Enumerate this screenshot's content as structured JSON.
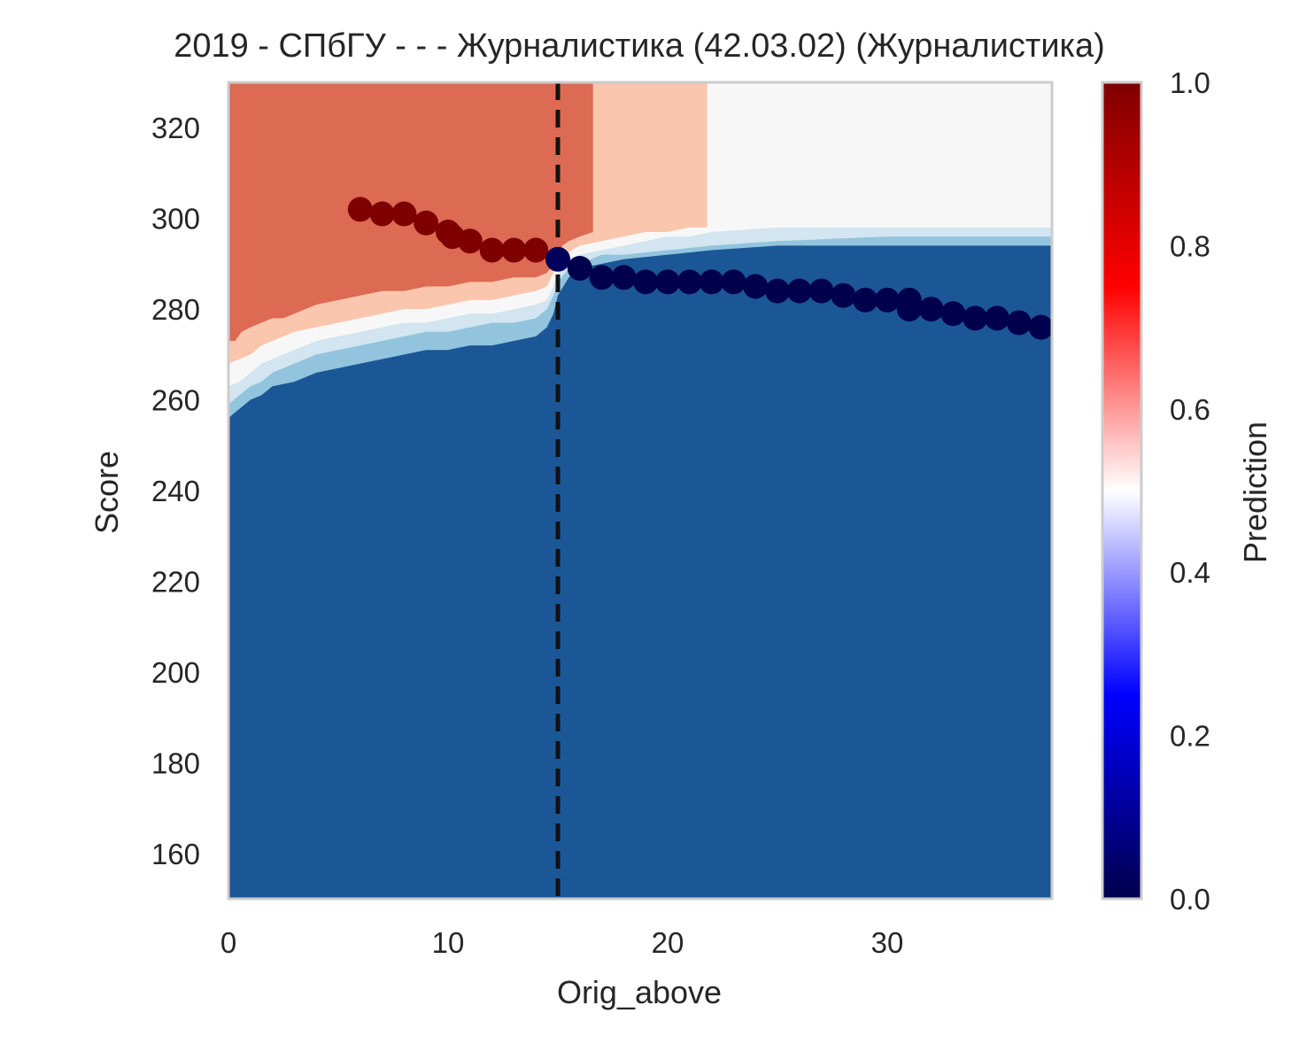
{
  "chart_data": {
    "type": "heatmap",
    "title": "2019 - СПбГУ - - - Журналистика (42.03.02) (Журналистика)",
    "xlabel": "Orig_above",
    "ylabel": "Score",
    "xlim": [
      0,
      37.5
    ],
    "ylim": [
      150,
      330
    ],
    "x_ticks": [
      0,
      10,
      20,
      30
    ],
    "y_ticks": [
      160,
      180,
      200,
      220,
      240,
      260,
      280,
      300,
      320
    ],
    "grid": false,
    "vline": {
      "x": 15,
      "style": "dashed",
      "color": "#111111"
    },
    "contour_levels": [
      0.0,
      0.1,
      0.2,
      0.3,
      0.4,
      0.5,
      0.6,
      0.7,
      0.8,
      0.9,
      1.0
    ],
    "contour_fill_colors": [
      "#1b5796",
      "#1b5796",
      "#4393c3",
      "#93c4de",
      "#d2e5f0",
      "#f7f7f7",
      "#fac6ad",
      "#dd6a53",
      "#dd6a53",
      "#9b1128"
    ],
    "contour_boundaries": [
      {
        "level": 0.85,
        "points": [
          [
            0,
            273
          ],
          [
            0.3,
            273
          ],
          [
            0.6,
            275
          ],
          [
            1,
            276
          ],
          [
            1.5,
            277
          ],
          [
            2,
            278
          ],
          [
            2.5,
            278
          ],
          [
            3,
            279
          ],
          [
            3.5,
            280
          ],
          [
            4,
            281
          ],
          [
            5,
            282
          ],
          [
            6,
            283
          ],
          [
            7,
            284
          ],
          [
            8,
            284
          ],
          [
            9,
            285
          ],
          [
            10,
            285
          ],
          [
            11,
            286
          ],
          [
            12,
            286
          ],
          [
            13,
            287
          ],
          [
            14,
            287
          ],
          [
            14.5,
            288
          ],
          [
            15,
            291
          ],
          [
            15.2,
            294
          ],
          [
            15.5,
            295
          ],
          [
            16,
            296
          ],
          [
            16.6,
            297
          ],
          [
            16.6,
            330
          ]
        ]
      },
      {
        "level": 0.65,
        "points": [
          [
            0,
            268
          ],
          [
            0.5,
            269
          ],
          [
            1,
            270
          ],
          [
            1.5,
            272
          ],
          [
            2,
            273
          ],
          [
            2.5,
            274
          ],
          [
            3,
            275
          ],
          [
            4,
            276
          ],
          [
            5,
            277
          ],
          [
            6,
            278
          ],
          [
            7,
            279
          ],
          [
            8,
            280
          ],
          [
            9,
            280
          ],
          [
            10,
            281
          ],
          [
            11,
            282
          ],
          [
            12,
            282
          ],
          [
            13,
            283
          ],
          [
            14,
            284
          ],
          [
            14.5,
            285
          ],
          [
            14.8,
            288
          ],
          [
            15,
            290
          ],
          [
            15.3,
            292
          ],
          [
            16,
            294
          ],
          [
            17,
            295
          ],
          [
            18,
            296
          ],
          [
            19,
            297
          ],
          [
            20,
            297
          ],
          [
            21,
            298
          ],
          [
            21.8,
            298
          ],
          [
            21.8,
            330
          ]
        ]
      },
      {
        "level": 0.55,
        "points": [
          [
            0,
            263
          ],
          [
            0.5,
            264
          ],
          [
            1,
            266
          ],
          [
            1.5,
            268
          ],
          [
            2,
            269
          ],
          [
            3,
            271
          ],
          [
            4,
            273
          ],
          [
            5,
            274
          ],
          [
            6,
            275
          ],
          [
            7,
            276
          ],
          [
            8,
            277
          ],
          [
            9,
            277
          ],
          [
            10,
            278
          ],
          [
            11,
            279
          ],
          [
            12,
            279
          ],
          [
            13,
            280
          ],
          [
            14,
            281
          ],
          [
            14.5,
            282
          ],
          [
            14.8,
            285
          ],
          [
            15,
            288
          ],
          [
            15.5,
            291
          ],
          [
            16,
            292
          ],
          [
            17,
            293
          ],
          [
            18,
            294
          ],
          [
            19,
            295
          ],
          [
            20,
            296
          ],
          [
            21,
            296
          ],
          [
            22,
            297
          ],
          [
            25,
            298
          ],
          [
            30,
            298
          ],
          [
            37.5,
            298
          ]
        ]
      },
      {
        "level": 0.45,
        "points": [
          [
            0,
            259
          ],
          [
            0.5,
            261
          ],
          [
            1,
            263
          ],
          [
            1.5,
            264
          ],
          [
            2,
            266
          ],
          [
            3,
            268
          ],
          [
            4,
            270
          ],
          [
            5,
            271
          ],
          [
            6,
            272
          ],
          [
            7,
            273
          ],
          [
            8,
            274
          ],
          [
            9,
            275
          ],
          [
            10,
            275
          ],
          [
            11,
            276
          ],
          [
            12,
            277
          ],
          [
            13,
            277
          ],
          [
            14,
            278
          ],
          [
            14.5,
            280
          ],
          [
            14.8,
            283
          ],
          [
            15,
            286
          ],
          [
            15.5,
            289
          ],
          [
            16,
            290
          ],
          [
            17,
            292
          ],
          [
            18,
            292
          ],
          [
            20,
            293
          ],
          [
            22,
            294
          ],
          [
            25,
            295
          ],
          [
            30,
            296
          ],
          [
            37.5,
            296
          ]
        ]
      },
      {
        "level": 0.35,
        "points": [
          [
            0,
            256
          ],
          [
            0.5,
            258
          ],
          [
            1,
            260
          ],
          [
            1.5,
            261
          ],
          [
            2,
            263
          ],
          [
            3,
            264
          ],
          [
            4,
            266
          ],
          [
            5,
            267
          ],
          [
            6,
            268
          ],
          [
            7,
            269
          ],
          [
            8,
            270
          ],
          [
            9,
            271
          ],
          [
            10,
            271
          ],
          [
            11,
            272
          ],
          [
            12,
            272
          ],
          [
            13,
            273
          ],
          [
            14,
            274
          ],
          [
            14.5,
            276
          ],
          [
            14.8,
            279
          ],
          [
            15,
            283
          ],
          [
            15.5,
            287
          ],
          [
            16,
            289
          ],
          [
            17,
            290
          ],
          [
            18,
            291
          ],
          [
            20,
            292
          ],
          [
            22,
            293
          ],
          [
            25,
            294
          ],
          [
            30,
            294
          ],
          [
            37.5,
            294
          ]
        ]
      },
      {
        "level": 0.15,
        "points": [
          [
            0,
            247
          ],
          [
            0.3,
            250
          ],
          [
            0.7,
            252
          ],
          [
            1,
            254
          ],
          [
            1.5,
            256
          ],
          [
            2,
            258
          ],
          [
            2.5,
            259
          ],
          [
            3,
            260
          ],
          [
            4,
            262
          ],
          [
            5,
            264
          ],
          [
            6,
            265
          ],
          [
            7,
            266
          ],
          [
            8,
            267
          ],
          [
            9,
            267
          ],
          [
            10,
            268
          ],
          [
            11,
            268
          ],
          [
            12,
            269
          ],
          [
            13,
            269
          ],
          [
            14,
            270
          ],
          [
            14.5,
            272
          ],
          [
            14.8,
            276
          ],
          [
            15,
            280
          ],
          [
            15.5,
            284
          ],
          [
            16,
            287
          ],
          [
            17,
            288
          ],
          [
            18,
            289
          ],
          [
            20,
            290
          ],
          [
            22,
            291
          ],
          [
            25,
            291
          ],
          [
            30,
            291
          ],
          [
            37.5,
            291
          ]
        ]
      }
    ],
    "scatter_points": [
      {
        "x": 6,
        "y": 302,
        "value": 1.0
      },
      {
        "x": 7,
        "y": 301,
        "value": 1.0
      },
      {
        "x": 8,
        "y": 301,
        "value": 1.0
      },
      {
        "x": 9,
        "y": 299,
        "value": 1.0
      },
      {
        "x": 10,
        "y": 297,
        "value": 1.0
      },
      {
        "x": 10.2,
        "y": 296,
        "value": 1.0
      },
      {
        "x": 11,
        "y": 295,
        "value": 1.0
      },
      {
        "x": 12,
        "y": 293,
        "value": 1.0
      },
      {
        "x": 13,
        "y": 293,
        "value": 1.0
      },
      {
        "x": 14,
        "y": 293,
        "value": 1.0
      },
      {
        "x": 15,
        "y": 291,
        "value": 0.02
      },
      {
        "x": 16,
        "y": 289,
        "value": 0.0
      },
      {
        "x": 17,
        "y": 287,
        "value": 0.0
      },
      {
        "x": 18,
        "y": 287,
        "value": 0.0
      },
      {
        "x": 19,
        "y": 286,
        "value": 0.0
      },
      {
        "x": 20,
        "y": 286,
        "value": 0.0
      },
      {
        "x": 21,
        "y": 286,
        "value": 0.0
      },
      {
        "x": 22,
        "y": 286,
        "value": 0.0
      },
      {
        "x": 23,
        "y": 286,
        "value": 0.0
      },
      {
        "x": 24,
        "y": 285,
        "value": 0.0
      },
      {
        "x": 25,
        "y": 284,
        "value": 0.0
      },
      {
        "x": 26,
        "y": 284,
        "value": 0.0
      },
      {
        "x": 27,
        "y": 284,
        "value": 0.0
      },
      {
        "x": 28,
        "y": 283,
        "value": 0.0
      },
      {
        "x": 29,
        "y": 282,
        "value": 0.0
      },
      {
        "x": 30,
        "y": 282,
        "value": 0.0
      },
      {
        "x": 31,
        "y": 282,
        "value": 0.0
      },
      {
        "x": 31,
        "y": 280,
        "value": 0.0
      },
      {
        "x": 32,
        "y": 280,
        "value": 0.0
      },
      {
        "x": 33,
        "y": 279,
        "value": 0.0
      },
      {
        "x": 34,
        "y": 278,
        "value": 0.0
      },
      {
        "x": 35,
        "y": 278,
        "value": 0.0
      },
      {
        "x": 36,
        "y": 277,
        "value": 0.0
      },
      {
        "x": 37,
        "y": 276,
        "value": 0.0
      }
    ],
    "colorbar": {
      "label": "Prediction",
      "range": [
        0.0,
        1.0
      ],
      "ticks": [
        "0.0",
        "0.2",
        "0.4",
        "0.6",
        "0.8",
        "1.0"
      ],
      "colormap": "seismic",
      "colormap_stops": [
        {
          "value": 0.0,
          "color": "#00004c"
        },
        {
          "value": 0.25,
          "color": "#0000ff"
        },
        {
          "value": 0.5,
          "color": "#ffffff"
        },
        {
          "value": 0.75,
          "color": "#ff0000"
        },
        {
          "value": 1.0,
          "color": "#7f0000"
        }
      ]
    }
  }
}
